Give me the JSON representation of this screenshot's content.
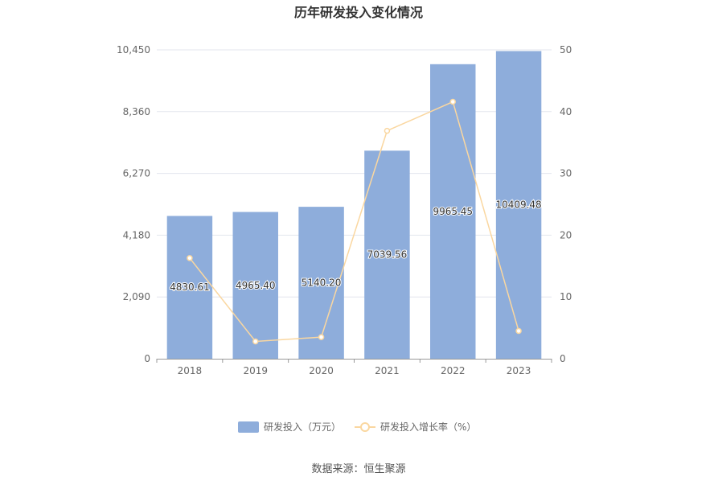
{
  "chart_data": {
    "type": "bar",
    "title": "历年研发投入变化情况",
    "categories": [
      "2018",
      "2019",
      "2020",
      "2021",
      "2022",
      "2023"
    ],
    "series": [
      {
        "name": "研发投入（万元）",
        "type": "bar",
        "axis": "left",
        "color": "#8eaddb",
        "values": [
          4830.61,
          4965.4,
          5140.2,
          7039.56,
          9965.45,
          10409.48
        ],
        "labels": [
          "4830.61",
          "4965.40",
          "5140.20",
          "7039.56",
          "9965.45",
          "10409.48"
        ]
      },
      {
        "name": "研发投入增长率（%）",
        "type": "line",
        "axis": "right",
        "color": "#fad7a0",
        "values": [
          16.3,
          2.8,
          3.5,
          36.9,
          41.6,
          4.5
        ]
      }
    ],
    "y_left": {
      "ylim": [
        0,
        10450
      ],
      "ticks": [
        0,
        2090,
        4180,
        6270,
        8360,
        10450
      ],
      "tick_labels": [
        "0",
        "2,090",
        "4,180",
        "6,270",
        "8,360",
        "10,450"
      ]
    },
    "y_right": {
      "ylim": [
        0,
        50
      ],
      "ticks": [
        0,
        10,
        20,
        30,
        40,
        50
      ],
      "tick_labels": [
        "0",
        "10",
        "20",
        "30",
        "40",
        "50"
      ]
    },
    "grid": true,
    "legend_position": "bottom-center"
  },
  "source_text": "数据来源：恒生聚源"
}
